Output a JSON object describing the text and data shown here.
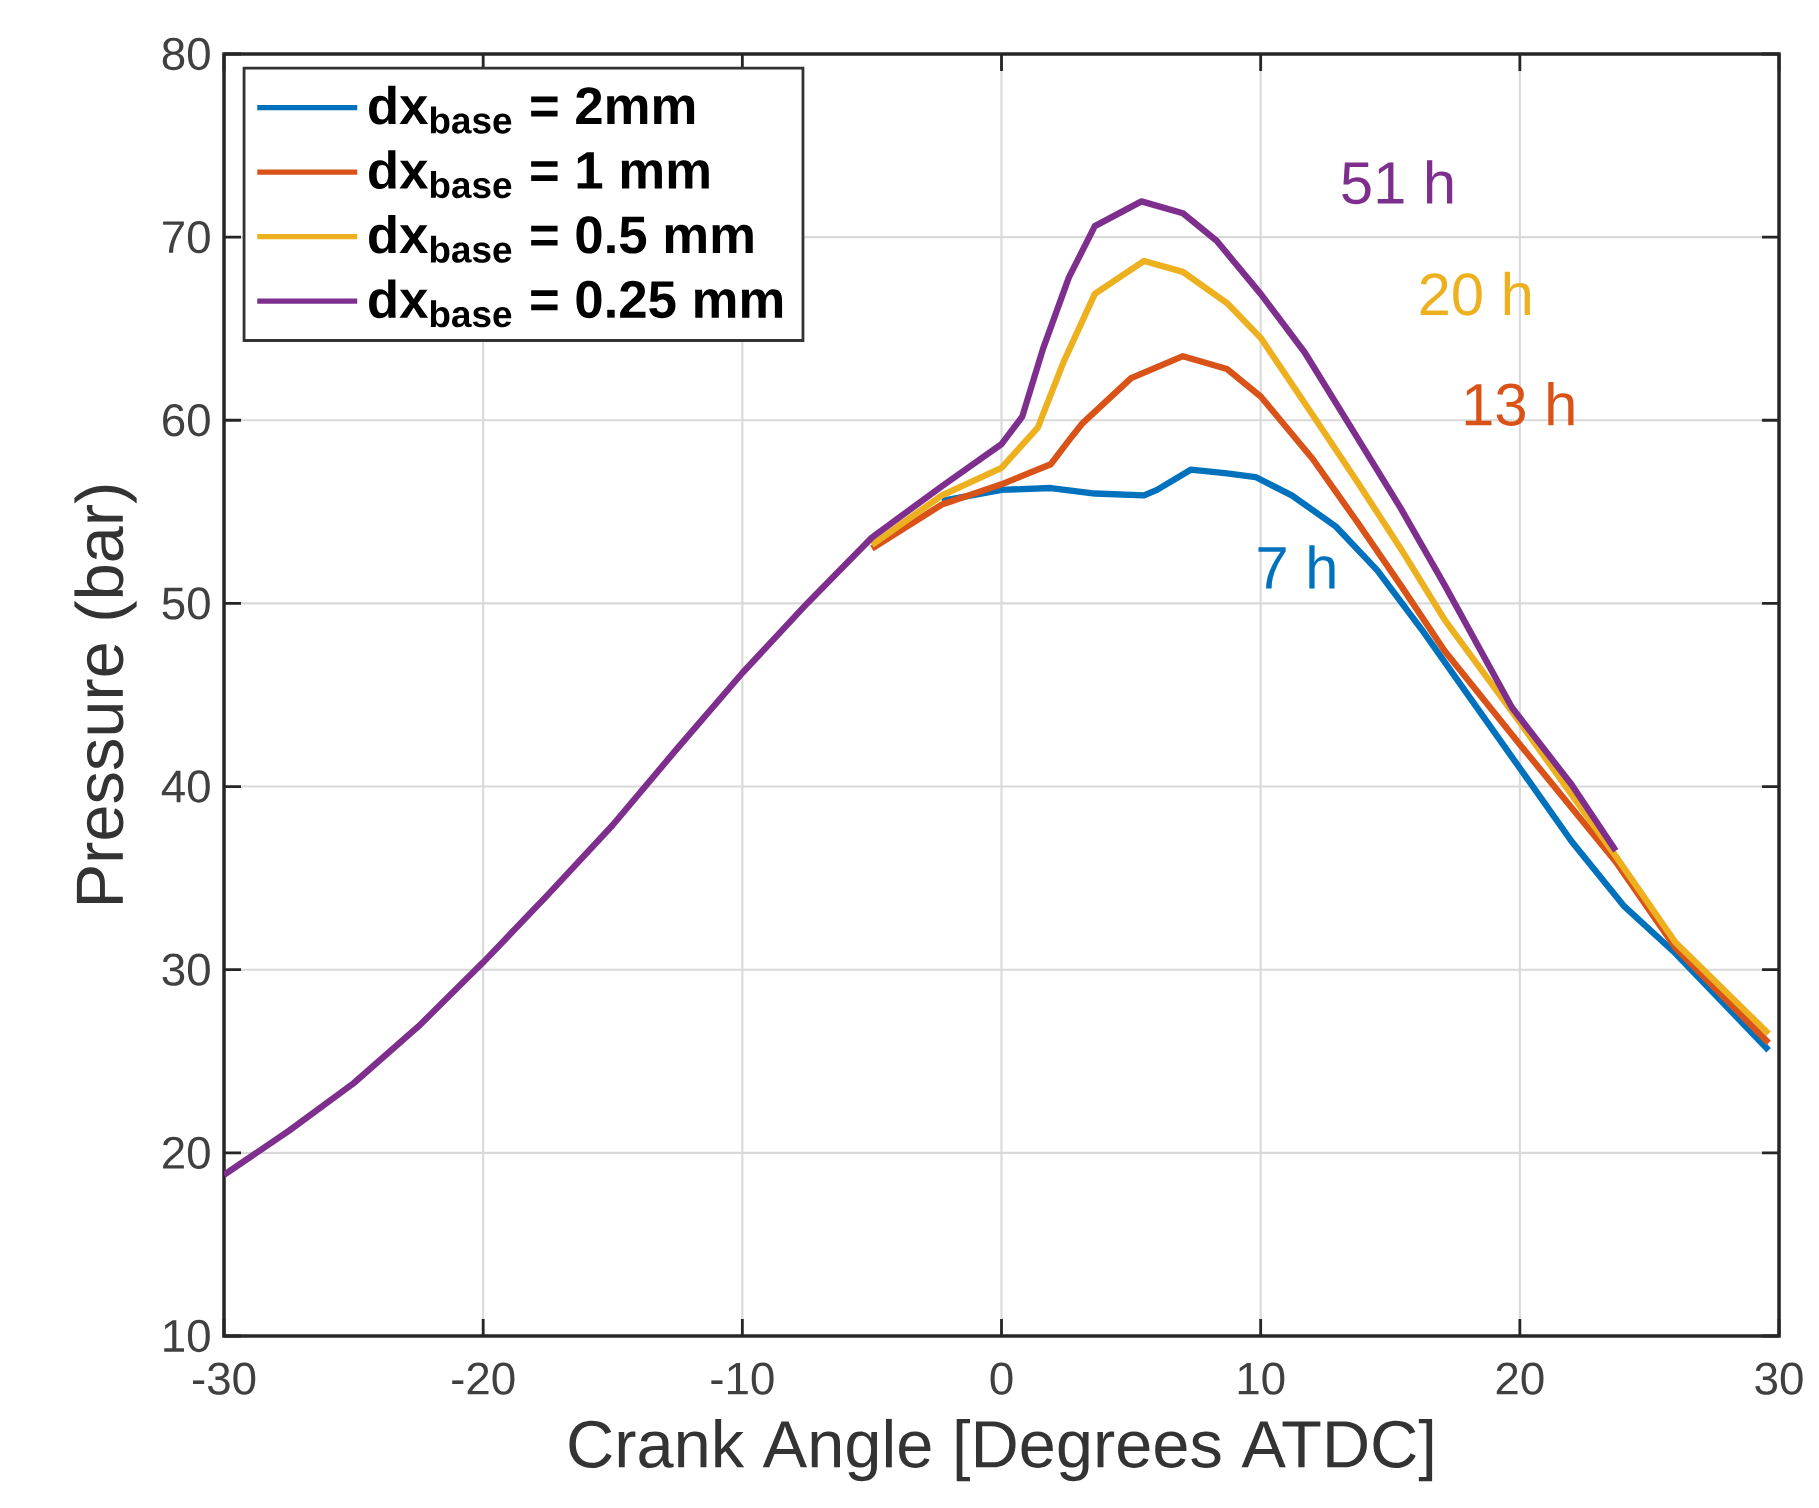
{
  "chart_data": {
    "type": "line",
    "xlabel": "Crank Angle [Degrees ATDC]",
    "ylabel": "Pressure (bar)",
    "xlim": [
      -30,
      30
    ],
    "ylim": [
      10,
      80
    ],
    "xticks": [
      -30,
      -20,
      -10,
      0,
      10,
      20,
      30
    ],
    "yticks": [
      10,
      20,
      30,
      40,
      50,
      60,
      70,
      80
    ],
    "grid": true,
    "legend": "top left",
    "line_style": "solid",
    "marker": "none",
    "series": [
      {
        "name": "dx$_{base}$ = 2mm",
        "color": "#0072bd",
        "x": [
          -2.3,
          0,
          1.9,
          3.6,
          5.5,
          6.0,
          7.3,
          8.7,
          9.8,
          11.2,
          12.9,
          14.5,
          16.2,
          17.9,
          20,
          22,
          24,
          26,
          29.6
        ],
        "values": [
          55.6,
          56.2,
          56.3,
          56.0,
          55.9,
          56.2,
          57.3,
          57.1,
          56.9,
          55.9,
          54.2,
          51.8,
          48.6,
          45.2,
          41.0,
          37.0,
          33.5,
          30.9,
          25.6
        ]
      },
      {
        "name": "dx$_{base}$ = 1 mm",
        "color": "#d95319",
        "x": [
          -5,
          -2.3,
          0,
          1.9,
          2.6,
          3.1,
          5.0,
          7.0,
          8.7,
          10,
          12,
          13.7,
          15.4,
          17.1,
          20,
          23.7,
          26,
          29.6
        ],
        "values": [
          53.0,
          55.4,
          56.5,
          57.6,
          58.9,
          59.8,
          62.3,
          63.5,
          62.8,
          61.3,
          57.9,
          54.5,
          51.0,
          47.4,
          42.3,
          35.9,
          31.2,
          26.0
        ]
      },
      {
        "name": "dx$_{base}$ = 0.5 mm",
        "color": "#edb120",
        "x": [
          -5,
          -2.3,
          0,
          1.4,
          2.4,
          3.6,
          5.5,
          7.0,
          8.7,
          10,
          12,
          13.7,
          15.4,
          17.1,
          20,
          23.7,
          26,
          29.6
        ],
        "values": [
          53.2,
          55.9,
          57.4,
          59.6,
          63.2,
          66.9,
          68.7,
          68.1,
          66.4,
          64.5,
          60.3,
          56.7,
          53.0,
          49.1,
          43.5,
          36.2,
          31.5,
          26.5
        ]
      },
      {
        "name": "dx$_{base}$ = 0.25 mm",
        "color": "#7e2f8e",
        "x": [
          -30,
          -27.5,
          -25,
          -22.5,
          -20,
          -17.5,
          -15,
          -12.5,
          -10,
          -7.5,
          -5,
          -2.3,
          0,
          0.8,
          1.6,
          2.6,
          3.6,
          5.4,
          7.0,
          8.3,
          10,
          11.7,
          13.4,
          15.4,
          17.1,
          19.7,
          22,
          23.7
        ],
        "values": [
          18.8,
          21.2,
          23.8,
          26.9,
          30.4,
          34.1,
          37.9,
          42.1,
          46.2,
          50.0,
          53.6,
          56.4,
          58.7,
          60.2,
          63.9,
          67.8,
          70.6,
          71.95,
          71.3,
          69.8,
          66.9,
          63.7,
          59.8,
          55.2,
          51.0,
          44.3,
          40.1,
          36.5
        ]
      }
    ],
    "annotations": [
      "51 h",
      "20 h",
      "13 h",
      "7 h"
    ]
  }
}
